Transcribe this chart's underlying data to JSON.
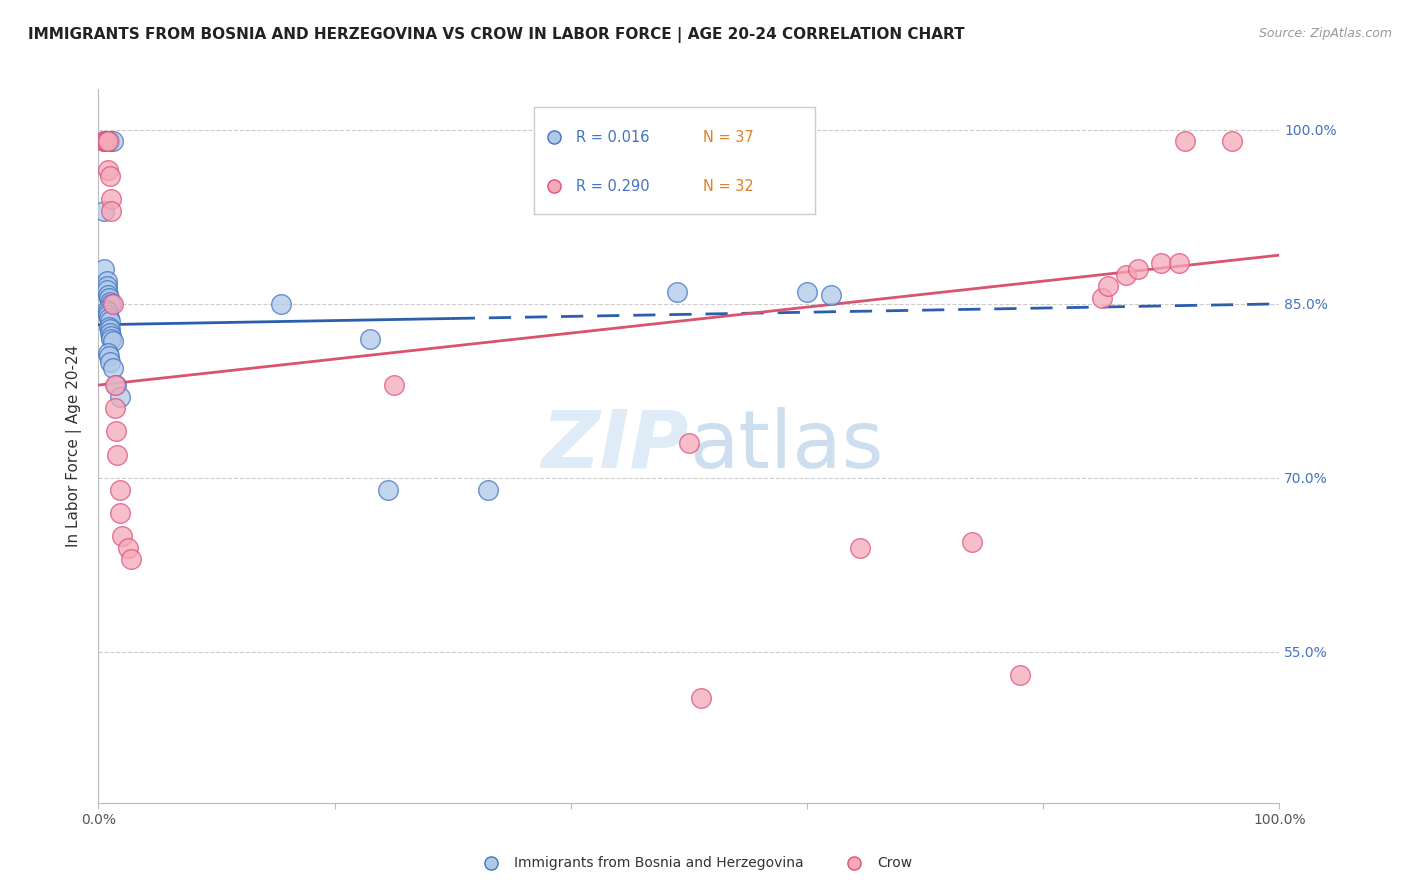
{
  "title": "IMMIGRANTS FROM BOSNIA AND HERZEGOVINA VS CROW IN LABOR FORCE | AGE 20-24 CORRELATION CHART",
  "source": "Source: ZipAtlas.com",
  "ylabel": "In Labor Force | Age 20-24",
  "ytick_labels": [
    "55.0%",
    "70.0%",
    "85.0%",
    "100.0%"
  ],
  "ytick_values": [
    0.55,
    0.7,
    0.85,
    1.0
  ],
  "legend_blue_r": "R = 0.016",
  "legend_blue_n": "N = 37",
  "legend_pink_r": "R = 0.290",
  "legend_pink_n": "N = 32",
  "blue_fill": "#aec9e8",
  "blue_edge": "#4472c4",
  "pink_fill": "#f4a9b8",
  "pink_edge": "#e05080",
  "blue_line_color": "#2b5fad",
  "pink_line_color": "#d9546e",
  "watermark_zip": "ZIP",
  "watermark_atlas": "atlas",
  "blue_scatter_x": [
    0.005,
    0.009,
    0.009,
    0.012,
    0.005,
    0.005,
    0.007,
    0.007,
    0.007,
    0.008,
    0.009,
    0.01,
    0.011,
    0.007,
    0.008,
    0.008,
    0.009,
    0.01,
    0.009,
    0.01,
    0.01,
    0.011,
    0.011,
    0.012,
    0.008,
    0.009,
    0.01,
    0.012,
    0.015,
    0.018,
    0.155,
    0.23,
    0.245,
    0.33,
    0.49,
    0.6,
    0.62
  ],
  "blue_scatter_y": [
    0.99,
    0.99,
    0.99,
    0.99,
    0.93,
    0.88,
    0.87,
    0.865,
    0.862,
    0.858,
    0.855,
    0.852,
    0.85,
    0.845,
    0.843,
    0.84,
    0.838,
    0.835,
    0.83,
    0.828,
    0.825,
    0.822,
    0.82,
    0.818,
    0.808,
    0.805,
    0.8,
    0.795,
    0.78,
    0.77,
    0.85,
    0.82,
    0.69,
    0.69,
    0.86,
    0.86,
    0.858
  ],
  "pink_scatter_x": [
    0.005,
    0.006,
    0.007,
    0.008,
    0.008,
    0.01,
    0.011,
    0.011,
    0.012,
    0.014,
    0.014,
    0.015,
    0.016,
    0.018,
    0.018,
    0.02,
    0.025,
    0.028,
    0.25,
    0.5,
    0.51,
    0.645,
    0.74,
    0.78,
    0.85,
    0.855,
    0.87,
    0.88,
    0.9,
    0.915,
    0.92,
    0.96
  ],
  "pink_scatter_y": [
    0.99,
    0.99,
    0.99,
    0.99,
    0.965,
    0.96,
    0.94,
    0.93,
    0.85,
    0.78,
    0.76,
    0.74,
    0.72,
    0.69,
    0.67,
    0.65,
    0.64,
    0.63,
    0.78,
    0.73,
    0.51,
    0.64,
    0.645,
    0.53,
    0.855,
    0.865,
    0.875,
    0.88,
    0.885,
    0.885,
    0.99,
    0.99
  ],
  "blue_line_y_start": 0.832,
  "blue_line_y_end": 0.85,
  "blue_line_solid_end": 0.3,
  "pink_line_y_start": 0.78,
  "pink_line_y_end": 0.892,
  "xlim": [
    0.0,
    1.0
  ],
  "ylim": [
    0.42,
    1.035
  ]
}
